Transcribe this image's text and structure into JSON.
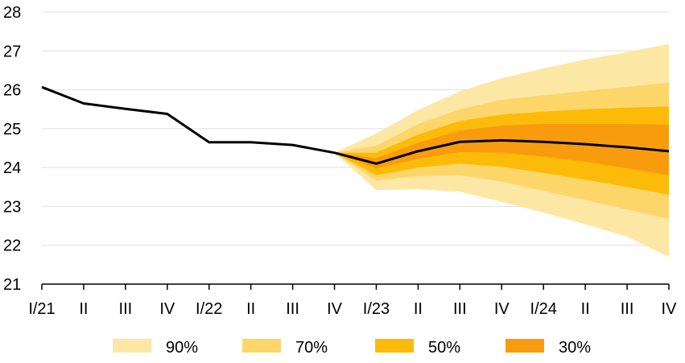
{
  "chart_data": {
    "type": "area",
    "categories": [
      "I/21",
      "II",
      "III",
      "IV",
      "I/22",
      "II",
      "III",
      "IV",
      "I/23",
      "II",
      "III",
      "IV",
      "I/24",
      "II",
      "III",
      "IV"
    ],
    "ylim": [
      21,
      28
    ],
    "yticks": [
      21,
      22,
      23,
      24,
      25,
      26,
      27,
      28
    ],
    "grid": true,
    "legend_position": "bottom",
    "central_line": {
      "color": "#000000",
      "values": [
        26.07,
        25.65,
        25.51,
        25.38,
        24.65,
        24.65,
        24.58,
        24.38,
        24.1,
        24.42,
        24.66,
        24.7,
        24.66,
        24.6,
        24.52,
        24.42
      ]
    },
    "bands_start_index": 7,
    "bands": [
      {
        "name": "90%",
        "color": "#FDE7A4",
        "lower": [
          24.38,
          23.42,
          23.44,
          23.38,
          23.12,
          22.84,
          22.54,
          22.22,
          21.7
        ],
        "upper": [
          24.38,
          24.88,
          25.48,
          25.96,
          26.3,
          26.55,
          26.78,
          26.97,
          27.18
        ]
      },
      {
        "name": "70%",
        "color": "#FDD66A",
        "lower": [
          24.38,
          23.66,
          23.78,
          23.8,
          23.64,
          23.4,
          23.17,
          22.92,
          22.68
        ],
        "upper": [
          24.38,
          24.56,
          25.12,
          25.5,
          25.74,
          25.86,
          25.97,
          26.08,
          26.18
        ]
      },
      {
        "name": "50%",
        "color": "#FCBB08",
        "lower": [
          24.38,
          23.8,
          24.0,
          24.1,
          24.02,
          23.86,
          23.69,
          23.5,
          23.3
        ],
        "upper": [
          24.38,
          24.38,
          24.85,
          25.2,
          25.36,
          25.44,
          25.5,
          25.54,
          25.57
        ]
      },
      {
        "name": "30%",
        "color": "#F89C0E",
        "lower": [
          24.38,
          23.98,
          24.22,
          24.4,
          24.38,
          24.28,
          24.15,
          23.98,
          23.8
        ],
        "upper": [
          24.38,
          24.24,
          24.64,
          24.95,
          25.08,
          25.12,
          25.12,
          25.12,
          25.1
        ]
      }
    ]
  }
}
